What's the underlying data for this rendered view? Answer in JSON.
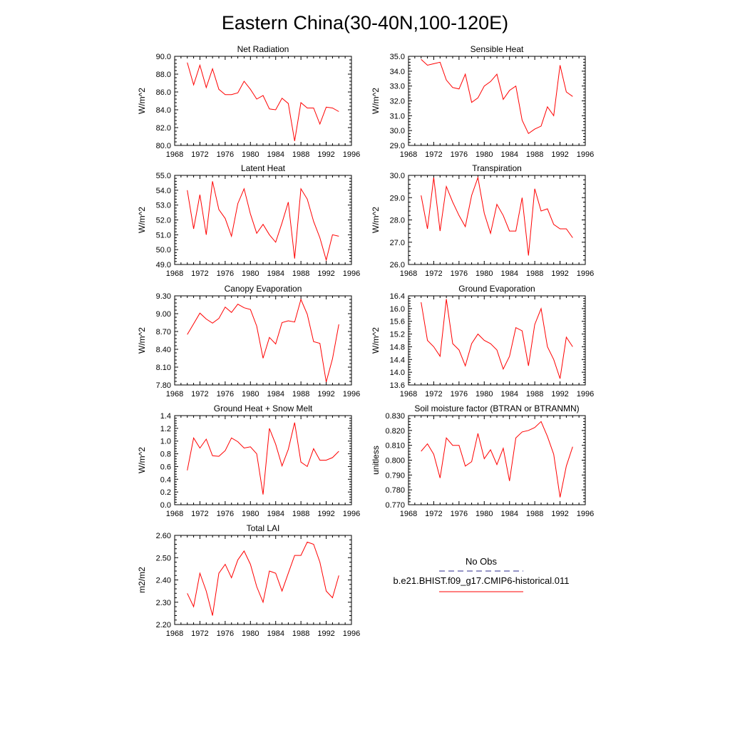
{
  "figure": {
    "title": "Eastern China(30-40N,100-120E)"
  },
  "legend": {
    "obs_label": "No Obs",
    "obs_color": "#2b2b8c",
    "model_label": "b.e21.BHIST.f09_g17.CMIP6-historical.011",
    "model_color": "#ff0000"
  },
  "chart_data": [
    {
      "type": "line",
      "title": "Net Radiation",
      "ylabel": "W/m^2",
      "xlim": [
        1968,
        1996
      ],
      "xticks": [
        1968,
        1972,
        1976,
        1980,
        1984,
        1988,
        1992,
        1996
      ],
      "ylim": [
        80.0,
        90.0
      ],
      "yticks": [
        80.0,
        82.0,
        84.0,
        86.0,
        88.0,
        90.0
      ],
      "ytick_labels": [
        "80.0",
        "82.0",
        "84.0",
        "86.0",
        "88.0",
        "90.0"
      ],
      "x": [
        1970,
        1971,
        1972,
        1973,
        1974,
        1975,
        1976,
        1977,
        1978,
        1979,
        1980,
        1981,
        1982,
        1983,
        1984,
        1985,
        1986,
        1987,
        1988,
        1989,
        1990,
        1991,
        1992,
        1993,
        1994
      ],
      "series": [
        {
          "name": "b.e21.BHIST.f09_g17.CMIP6-historical.011",
          "values": [
            89.3,
            86.8,
            89.0,
            86.5,
            88.6,
            86.3,
            85.7,
            85.7,
            85.9,
            87.2,
            86.3,
            85.2,
            85.6,
            84.1,
            84.0,
            85.3,
            84.7,
            80.5,
            84.8,
            84.2,
            84.2,
            82.4,
            84.3,
            84.2,
            83.8
          ]
        }
      ]
    },
    {
      "type": "line",
      "title": "Sensible Heat",
      "ylabel": "W/m^2",
      "xlim": [
        1968,
        1996
      ],
      "xticks": [
        1968,
        1972,
        1976,
        1980,
        1984,
        1988,
        1992,
        1996
      ],
      "ylim": [
        29.0,
        35.0
      ],
      "yticks": [
        29.0,
        30.0,
        31.0,
        32.0,
        33.0,
        34.0,
        35.0
      ],
      "ytick_labels": [
        "29.0",
        "30.0",
        "31.0",
        "32.0",
        "33.0",
        "34.0",
        "35.0"
      ],
      "x": [
        1970,
        1971,
        1972,
        1973,
        1974,
        1975,
        1976,
        1977,
        1978,
        1979,
        1980,
        1981,
        1982,
        1983,
        1984,
        1985,
        1986,
        1987,
        1988,
        1989,
        1990,
        1991,
        1992,
        1993,
        1994
      ],
      "series": [
        {
          "name": "b.e21.BHIST.f09_g17.CMIP6-historical.011",
          "values": [
            34.8,
            34.4,
            34.5,
            34.6,
            33.4,
            32.9,
            32.8,
            33.8,
            31.9,
            32.2,
            33.0,
            33.3,
            33.8,
            32.1,
            32.7,
            33.0,
            30.7,
            29.8,
            30.1,
            30.3,
            31.6,
            31.0,
            34.4,
            32.6,
            32.3
          ]
        }
      ]
    },
    {
      "type": "line",
      "title": "Latent Heat",
      "ylabel": "W/m^2",
      "xlim": [
        1968,
        1996
      ],
      "xticks": [
        1968,
        1972,
        1976,
        1980,
        1984,
        1988,
        1992,
        1996
      ],
      "ylim": [
        49.0,
        55.0
      ],
      "yticks": [
        49.0,
        50.0,
        51.0,
        52.0,
        53.0,
        54.0,
        55.0
      ],
      "ytick_labels": [
        "49.0",
        "50.0",
        "51.0",
        "52.0",
        "53.0",
        "54.0",
        "55.0"
      ],
      "x": [
        1970,
        1971,
        1972,
        1973,
        1974,
        1975,
        1976,
        1977,
        1978,
        1979,
        1980,
        1981,
        1982,
        1983,
        1984,
        1985,
        1986,
        1987,
        1988,
        1989,
        1990,
        1991,
        1992,
        1993,
        1994
      ],
      "series": [
        {
          "name": "b.e21.BHIST.f09_g17.CMIP6-historical.011",
          "values": [
            54.0,
            51.4,
            53.7,
            51.0,
            54.6,
            52.7,
            52.1,
            50.9,
            53.1,
            54.1,
            52.4,
            51.1,
            51.7,
            51.0,
            50.5,
            51.8,
            53.2,
            49.4,
            54.1,
            53.4,
            51.9,
            50.8,
            49.3,
            51.0,
            50.9
          ]
        }
      ]
    },
    {
      "type": "line",
      "title": "Transpiration",
      "ylabel": "W/m^2",
      "xlim": [
        1968,
        1996
      ],
      "xticks": [
        1968,
        1972,
        1976,
        1980,
        1984,
        1988,
        1992,
        1996
      ],
      "ylim": [
        26.0,
        30.0
      ],
      "yticks": [
        26.0,
        27.0,
        28.0,
        29.0,
        30.0
      ],
      "ytick_labels": [
        "26.0",
        "27.0",
        "28.0",
        "29.0",
        "30.0"
      ],
      "x": [
        1970,
        1971,
        1972,
        1973,
        1974,
        1975,
        1976,
        1977,
        1978,
        1979,
        1980,
        1981,
        1982,
        1983,
        1984,
        1985,
        1986,
        1987,
        1988,
        1989,
        1990,
        1991,
        1992,
        1993,
        1994
      ],
      "series": [
        {
          "name": "b.e21.BHIST.f09_g17.CMIP6-historical.011",
          "values": [
            29.1,
            27.6,
            29.9,
            27.5,
            29.5,
            28.8,
            28.2,
            27.7,
            29.1,
            29.9,
            28.3,
            27.4,
            28.7,
            28.2,
            27.5,
            27.5,
            29.0,
            26.4,
            29.4,
            28.4,
            28.5,
            27.8,
            27.6,
            27.6,
            27.2
          ]
        }
      ]
    },
    {
      "type": "line",
      "title": "Canopy Evaporation",
      "ylabel": "W/m^2",
      "xlim": [
        1968,
        1996
      ],
      "xticks": [
        1968,
        1972,
        1976,
        1980,
        1984,
        1988,
        1992,
        1996
      ],
      "ylim": [
        7.8,
        9.3
      ],
      "yticks": [
        7.8,
        8.1,
        8.4,
        8.7,
        9.0,
        9.3
      ],
      "ytick_labels": [
        "7.80",
        "8.10",
        "8.40",
        "8.70",
        "9.00",
        "9.30"
      ],
      "x": [
        1970,
        1971,
        1972,
        1973,
        1974,
        1975,
        1976,
        1977,
        1978,
        1979,
        1980,
        1981,
        1982,
        1983,
        1984,
        1985,
        1986,
        1987,
        1988,
        1989,
        1990,
        1991,
        1992,
        1993,
        1994
      ],
      "series": [
        {
          "name": "b.e21.BHIST.f09_g17.CMIP6-historical.011",
          "values": [
            8.65,
            8.83,
            9.01,
            8.91,
            8.84,
            8.92,
            9.11,
            9.02,
            9.16,
            9.1,
            9.07,
            8.79,
            8.25,
            8.6,
            8.49,
            8.85,
            8.88,
            8.86,
            9.24,
            8.99,
            8.53,
            8.5,
            7.85,
            8.24,
            8.82
          ]
        }
      ]
    },
    {
      "type": "line",
      "title": "Ground Evaporation",
      "ylabel": "W/m^2",
      "xlim": [
        1968,
        1996
      ],
      "xticks": [
        1968,
        1972,
        1976,
        1980,
        1984,
        1988,
        1992,
        1996
      ],
      "ylim": [
        13.6,
        16.4
      ],
      "yticks": [
        13.6,
        14.0,
        14.4,
        14.8,
        15.2,
        15.6,
        16.0,
        16.4
      ],
      "ytick_labels": [
        "13.6",
        "14.0",
        "14.4",
        "14.8",
        "15.2",
        "15.6",
        "16.0",
        "16.4"
      ],
      "x": [
        1970,
        1971,
        1972,
        1973,
        1974,
        1975,
        1976,
        1977,
        1978,
        1979,
        1980,
        1981,
        1982,
        1983,
        1984,
        1985,
        1986,
        1987,
        1988,
        1989,
        1990,
        1991,
        1992,
        1993,
        1994
      ],
      "series": [
        {
          "name": "b.e21.BHIST.f09_g17.CMIP6-historical.011",
          "values": [
            16.2,
            15.0,
            14.8,
            14.5,
            16.3,
            14.9,
            14.7,
            14.2,
            14.9,
            15.2,
            15.0,
            14.9,
            14.7,
            14.1,
            14.5,
            15.4,
            15.3,
            14.2,
            15.5,
            16.0,
            14.8,
            14.4,
            13.8,
            15.1,
            14.8
          ]
        }
      ]
    },
    {
      "type": "line",
      "title": "Ground Heat + Snow Melt",
      "ylabel": "W/m^2",
      "xlim": [
        1968,
        1996
      ],
      "xticks": [
        1968,
        1972,
        1976,
        1980,
        1984,
        1988,
        1992,
        1996
      ],
      "ylim": [
        0.0,
        1.4
      ],
      "yticks": [
        0.0,
        0.2,
        0.4,
        0.6,
        0.8,
        1.0,
        1.2,
        1.4
      ],
      "ytick_labels": [
        "0.0",
        "0.2",
        "0.4",
        "0.6",
        "0.8",
        "1.0",
        "1.2",
        "1.4"
      ],
      "x": [
        1970,
        1971,
        1972,
        1973,
        1974,
        1975,
        1976,
        1977,
        1978,
        1979,
        1980,
        1981,
        1982,
        1983,
        1984,
        1985,
        1986,
        1987,
        1988,
        1989,
        1990,
        1991,
        1992,
        1993,
        1994
      ],
      "series": [
        {
          "name": "b.e21.BHIST.f09_g17.CMIP6-historical.011",
          "values": [
            0.54,
            1.05,
            0.89,
            1.03,
            0.77,
            0.76,
            0.85,
            1.05,
            0.99,
            0.89,
            0.91,
            0.8,
            0.16,
            1.2,
            0.95,
            0.61,
            0.87,
            1.29,
            0.67,
            0.6,
            0.88,
            0.7,
            0.7,
            0.74,
            0.84
          ]
        }
      ]
    },
    {
      "type": "line",
      "title": "Soil moisture factor (BTRAN or BTRANMN)",
      "ylabel": "unitless",
      "xlim": [
        1968,
        1996
      ],
      "xticks": [
        1968,
        1972,
        1976,
        1980,
        1984,
        1988,
        1992,
        1996
      ],
      "ylim": [
        0.77,
        0.83
      ],
      "yticks": [
        0.77,
        0.78,
        0.79,
        0.8,
        0.81,
        0.82,
        0.83
      ],
      "ytick_labels": [
        "0.770",
        "0.780",
        "0.790",
        "0.800",
        "0.810",
        "0.820",
        "0.830"
      ],
      "x": [
        1970,
        1971,
        1972,
        1973,
        1974,
        1975,
        1976,
        1977,
        1978,
        1979,
        1980,
        1981,
        1982,
        1983,
        1984,
        1985,
        1986,
        1987,
        1988,
        1989,
        1990,
        1991,
        1992,
        1993,
        1994
      ],
      "series": [
        {
          "name": "b.e21.BHIST.f09_g17.CMIP6-historical.011",
          "values": [
            0.806,
            0.811,
            0.804,
            0.788,
            0.815,
            0.81,
            0.81,
            0.796,
            0.799,
            0.818,
            0.801,
            0.807,
            0.797,
            0.808,
            0.786,
            0.815,
            0.819,
            0.82,
            0.822,
            0.826,
            0.816,
            0.804,
            0.775,
            0.796,
            0.809
          ]
        }
      ]
    },
    {
      "type": "line",
      "title": "Total LAI",
      "ylabel": "m2/m2",
      "xlim": [
        1968,
        1996
      ],
      "xticks": [
        1968,
        1972,
        1976,
        1980,
        1984,
        1988,
        1992,
        1996
      ],
      "ylim": [
        2.2,
        2.6
      ],
      "yticks": [
        2.2,
        2.3,
        2.4,
        2.5,
        2.6
      ],
      "ytick_labels": [
        "2.20",
        "2.30",
        "2.40",
        "2.50",
        "2.60"
      ],
      "x": [
        1970,
        1971,
        1972,
        1973,
        1974,
        1975,
        1976,
        1977,
        1978,
        1979,
        1980,
        1981,
        1982,
        1983,
        1984,
        1985,
        1986,
        1987,
        1988,
        1989,
        1990,
        1991,
        1992,
        1993,
        1994
      ],
      "series": [
        {
          "name": "b.e21.BHIST.f09_g17.CMIP6-historical.011",
          "values": [
            2.34,
            2.28,
            2.43,
            2.35,
            2.24,
            2.43,
            2.47,
            2.41,
            2.49,
            2.53,
            2.47,
            2.37,
            2.3,
            2.44,
            2.43,
            2.35,
            2.43,
            2.51,
            2.51,
            2.57,
            2.56,
            2.48,
            2.35,
            2.32,
            2.42
          ]
        }
      ]
    }
  ]
}
